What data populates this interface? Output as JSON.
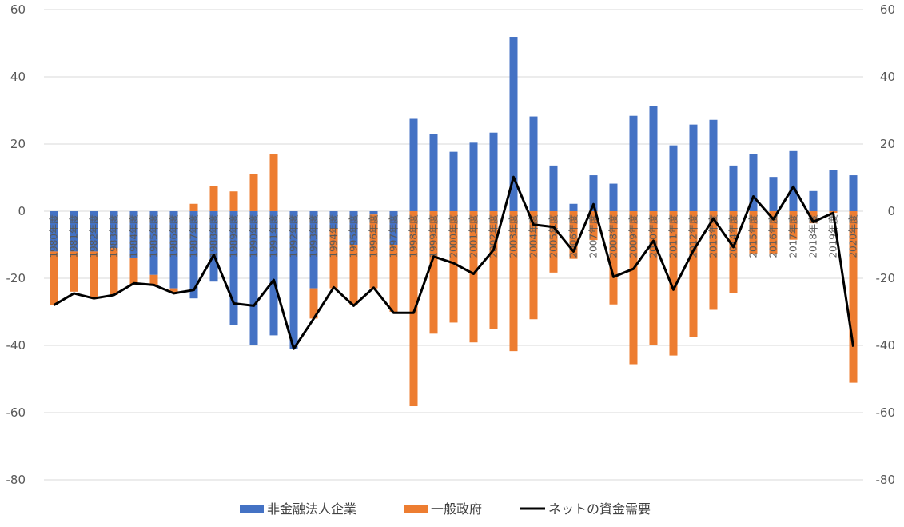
{
  "chart_data": {
    "type": "bar",
    "stacked": true,
    "title": "",
    "xlabel": "",
    "ylabel": "",
    "ylim": [
      -80,
      60
    ],
    "yticks": [
      60,
      40,
      20,
      0,
      -20,
      -40,
      -60,
      -80
    ],
    "secondary_ylim": [
      -80,
      60
    ],
    "grid": true,
    "legend_position": "bottom",
    "categories": [
      "1980年度",
      "1981年度",
      "1982年度",
      "1983年度",
      "1984年度",
      "1985年度",
      "1986年度",
      "1987年度",
      "1988年度",
      "1989年度",
      "1990年度",
      "1991年度",
      "1992年度",
      "1993年度",
      "1994年度",
      "1995年度",
      "1996年度",
      "1997年度",
      "1998年度",
      "1999年度",
      "2000年度",
      "2001年度",
      "2002年度",
      "2003年度",
      "2004年度",
      "2005年度",
      "2006年度",
      "2007年度",
      "2008年度",
      "2009年度",
      "2010年度",
      "2011年度",
      "2012年度",
      "2013年度",
      "2014年度",
      "2015年度",
      "2016年度",
      "2017年度",
      "2018年度",
      "2019年度",
      "2020年度"
    ],
    "series": [
      {
        "name": "非金融法人企業",
        "type": "bar",
        "color": "#4472C4",
        "values": [
          -12,
          -12,
          -12,
          -11,
          -14,
          -19,
          -23,
          -26,
          -21,
          -34,
          -40,
          -37,
          -41,
          -23,
          -5,
          -10,
          -1,
          -10,
          27.5,
          23,
          17.7,
          20.4,
          23.4,
          51.9,
          28.2,
          13.6,
          2.2,
          10.7,
          8.2,
          28.4,
          31.2,
          19.6,
          25.8,
          27.2,
          13.6,
          17,
          10.2,
          17.9,
          6,
          12.2,
          10.7
        ]
      },
      {
        "name": "一般政府",
        "type": "bar",
        "color": "#ED7D31",
        "values": [
          -16,
          -12,
          -14,
          -14,
          -8,
          -3,
          -1.5,
          2.2,
          7.6,
          5.9,
          11.1,
          16.9,
          0,
          -9,
          -18,
          -18,
          -22,
          -20,
          -58.1,
          -36.5,
          -33.2,
          -39.1,
          -35.1,
          -41.7,
          -32.2,
          -18.3,
          -14.2,
          -8.6,
          -27.8,
          -45.6,
          -40,
          -43,
          -37.5,
          -29.4,
          -24.3,
          -12.6,
          -12.6,
          -8.5,
          -3.6,
          -0.5,
          -51.1
        ]
      },
      {
        "name": "ネットの資金需要",
        "type": "line",
        "color": "#000000",
        "values": [
          -28,
          -24.5,
          -26,
          -25,
          -21.5,
          -22,
          -24.5,
          -23.5,
          -13,
          -27.5,
          -28.2,
          -20.5,
          -41,
          -32,
          -22.7,
          -28.2,
          -22.8,
          -30.3,
          -30.3,
          -13.5,
          -15.5,
          -18.7,
          -11.5,
          10.2,
          -4,
          -4.7,
          -12,
          2.1,
          -19.6,
          -17.2,
          -8.8,
          -23.4,
          -11.7,
          -2.2,
          -10.7,
          4.4,
          -2.4,
          7.3,
          -3.2,
          -0.5,
          -40.4
        ]
      }
    ]
  }
}
